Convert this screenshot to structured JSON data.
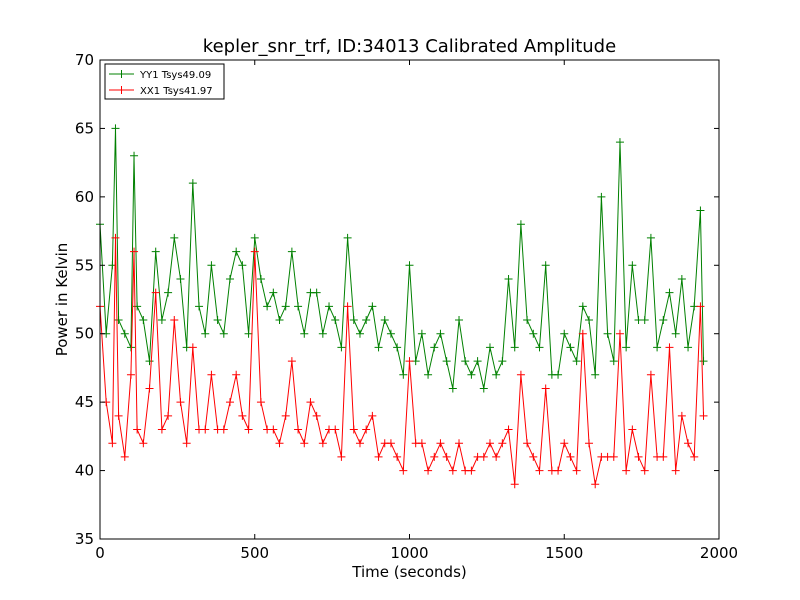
{
  "chart_data": {
    "type": "line",
    "title": "kepler_snr_trf, ID:34013 Calibrated Amplitude",
    "xlabel": "Time (seconds)",
    "ylabel": "Power in Kelvin",
    "xlim": [
      0,
      2000
    ],
    "ylim": [
      35,
      70
    ],
    "x_ticks": [
      0,
      500,
      1000,
      1500,
      2000
    ],
    "y_ticks": [
      35,
      40,
      45,
      50,
      55,
      60,
      65,
      70
    ],
    "marker": "+",
    "legend": "top-left",
    "grid": false,
    "series": [
      {
        "name": "YY1 Tsys49.09",
        "color": "#008000",
        "x": [
          0,
          20,
          40,
          50,
          60,
          80,
          100,
          110,
          120,
          140,
          160,
          180,
          200,
          220,
          240,
          260,
          280,
          300,
          320,
          340,
          360,
          380,
          400,
          420,
          440,
          460,
          480,
          500,
          520,
          540,
          560,
          580,
          600,
          620,
          640,
          660,
          680,
          700,
          720,
          740,
          760,
          780,
          800,
          820,
          840,
          860,
          880,
          900,
          920,
          940,
          960,
          980,
          1000,
          1020,
          1040,
          1060,
          1080,
          1100,
          1120,
          1140,
          1160,
          1180,
          1200,
          1220,
          1240,
          1260,
          1280,
          1300,
          1320,
          1340,
          1360,
          1380,
          1400,
          1420,
          1440,
          1460,
          1480,
          1500,
          1520,
          1540,
          1560,
          1580,
          1600,
          1620,
          1640,
          1660,
          1680,
          1700,
          1720,
          1740,
          1760,
          1780,
          1800,
          1820,
          1840,
          1860,
          1880,
          1900,
          1920,
          1940,
          1950
        ],
        "y": [
          58,
          50,
          55,
          65,
          51,
          50,
          49,
          63,
          52,
          51,
          48,
          56,
          51,
          53,
          57,
          54,
          49,
          61,
          52,
          50,
          55,
          51,
          50,
          54,
          56,
          55,
          50,
          57,
          54,
          52,
          53,
          51,
          52,
          56,
          52,
          50,
          53,
          53,
          50,
          52,
          51,
          49,
          57,
          51,
          50,
          51,
          52,
          49,
          51,
          50,
          49,
          47,
          55,
          48,
          50,
          47,
          49,
          50,
          48,
          46,
          51,
          48,
          47,
          48,
          46,
          49,
          47,
          48,
          54,
          49,
          58,
          51,
          50,
          49,
          55,
          47,
          47,
          50,
          49,
          48,
          52,
          51,
          47,
          60,
          50,
          48,
          64,
          49,
          55,
          51,
          51,
          57,
          49,
          51,
          53,
          50,
          54,
          49,
          52,
          59,
          48
        ]
      },
      {
        "name": "XX1 Tsys41.97",
        "color": "#ff0000",
        "x": [
          0,
          20,
          40,
          50,
          60,
          80,
          100,
          110,
          120,
          140,
          160,
          180,
          200,
          220,
          240,
          260,
          280,
          300,
          320,
          340,
          360,
          380,
          400,
          420,
          440,
          460,
          480,
          500,
          520,
          540,
          560,
          580,
          600,
          620,
          640,
          660,
          680,
          700,
          720,
          740,
          760,
          780,
          800,
          820,
          840,
          860,
          880,
          900,
          920,
          940,
          960,
          980,
          1000,
          1020,
          1040,
          1060,
          1080,
          1100,
          1120,
          1140,
          1160,
          1180,
          1200,
          1220,
          1240,
          1260,
          1280,
          1300,
          1320,
          1340,
          1360,
          1380,
          1400,
          1420,
          1440,
          1460,
          1480,
          1500,
          1520,
          1540,
          1560,
          1580,
          1600,
          1620,
          1640,
          1660,
          1680,
          1700,
          1720,
          1740,
          1760,
          1780,
          1800,
          1820,
          1840,
          1860,
          1880,
          1900,
          1920,
          1940,
          1950
        ],
        "y": [
          52,
          45,
          42,
          57,
          44,
          41,
          47,
          56,
          43,
          42,
          46,
          53,
          43,
          44,
          51,
          45,
          42,
          49,
          43,
          43,
          47,
          43,
          43,
          45,
          47,
          44,
          43,
          56,
          45,
          43,
          43,
          42,
          44,
          48,
          43,
          42,
          45,
          44,
          42,
          43,
          43,
          41,
          52,
          43,
          42,
          43,
          44,
          41,
          42,
          42,
          41,
          40,
          48,
          42,
          42,
          40,
          41,
          42,
          41,
          40,
          42,
          40,
          40,
          41,
          41,
          42,
          41,
          42,
          43,
          39,
          47,
          42,
          41,
          40,
          46,
          40,
          40,
          42,
          41,
          40,
          50,
          42,
          39,
          41,
          41,
          41,
          50,
          40,
          43,
          41,
          40,
          47,
          41,
          41,
          49,
          40,
          44,
          42,
          41,
          52,
          44
        ]
      }
    ]
  }
}
